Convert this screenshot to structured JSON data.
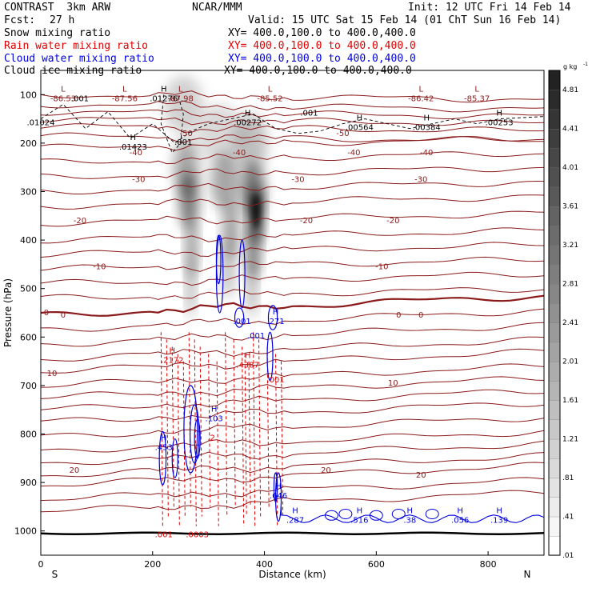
{
  "header": {
    "model": "CONTRAST  3km ARW",
    "org": "NCAR/MMM",
    "init": "Init: 12 UTC Fri 14 Feb 14",
    "fcst_label": "Fcst:",
    "fcst_value": "27 h",
    "valid": "Valid: 15 UTC Sat 15 Feb 14 (01 ChT Sun 16 Feb 14)"
  },
  "legend": [
    {
      "label": "Snow mixing ratio",
      "xy": "XY= 400.0,100.0 to 400.0,400.0",
      "color": "#000000"
    },
    {
      "label": "Rain water mixing ratio",
      "xy": "XY= 400.0,100.0 to 400.0,400.0",
      "color": "#e00000"
    },
    {
      "label": "Cloud water mixing ratio",
      "xy": "XY= 400.0,100.0 to 400.0,400.0",
      "color": "#0000e0"
    },
    {
      "label": "Cloud ice mixing ratio",
      "xy": "XY= 400.0,100.0 to 400.0,400.0",
      "color": "#000000"
    }
  ],
  "chart_data": {
    "type": "cross-section",
    "xlabel": "Distance (km)",
    "ylabel": "Pressure (hPa)",
    "xlim": [
      0,
      900
    ],
    "ylim": [
      1050,
      50
    ],
    "x_ticks": [
      "0",
      "200",
      "400",
      "600",
      "800"
    ],
    "x_tick_values": [
      0,
      200,
      400,
      600,
      800
    ],
    "y_ticks": [
      "100",
      "200",
      "300",
      "400",
      "500",
      "600",
      "700",
      "800",
      "900",
      "1000"
    ],
    "y_tick_values": [
      100,
      200,
      300,
      400,
      500,
      600,
      700,
      800,
      900,
      1000
    ],
    "endpoints": {
      "left": "S",
      "right": "N"
    },
    "colorbar": {
      "units": "g kg",
      "units_exp": "-1",
      "labels": [
        "4.81",
        "4.41",
        "4.01",
        "3.61",
        "3.21",
        "2.81",
        "2.41",
        "2.01",
        "1.61",
        "1.21",
        ".81",
        ".41",
        ".01"
      ],
      "values": [
        4.81,
        4.41,
        4.01,
        3.61,
        3.21,
        2.81,
        2.41,
        2.01,
        1.61,
        1.21,
        0.81,
        0.41,
        0.01
      ],
      "range": [
        0,
        5.0
      ]
    },
    "snow_maxima": [
      {
        "x": 265,
        "p": 300,
        "value": 3.5
      },
      {
        "x": 380,
        "p": 320,
        "value": 4.6
      }
    ],
    "temperature_labels": [
      {
        "x": 0,
        "p": 50,
        "text": ""
      },
      {
        "x": 260,
        "p": 185,
        "text": "-50"
      },
      {
        "x": 540,
        "p": 185,
        "text": "-50"
      },
      {
        "x": 170,
        "p": 225,
        "text": "-40"
      },
      {
        "x": 355,
        "p": 225,
        "text": "-40"
      },
      {
        "x": 560,
        "p": 225,
        "text": "-40"
      },
      {
        "x": 690,
        "p": 225,
        "text": "-40"
      },
      {
        "x": 175,
        "p": 280,
        "text": "-30"
      },
      {
        "x": 460,
        "p": 280,
        "text": "-30"
      },
      {
        "x": 680,
        "p": 280,
        "text": "-30"
      },
      {
        "x": 70,
        "p": 365,
        "text": "-20"
      },
      {
        "x": 475,
        "p": 365,
        "text": "-20"
      },
      {
        "x": 630,
        "p": 365,
        "text": "-20"
      },
      {
        "x": 105,
        "p": 460,
        "text": "-10"
      },
      {
        "x": 610,
        "p": 460,
        "text": "-10"
      },
      {
        "x": 10,
        "p": 555,
        "text": "0"
      },
      {
        "x": 40,
        "p": 560,
        "text": "0"
      },
      {
        "x": 640,
        "p": 560,
        "text": "0"
      },
      {
        "x": 680,
        "p": 560,
        "text": "0"
      },
      {
        "x": 20,
        "p": 680,
        "text": "10"
      },
      {
        "x": 630,
        "p": 700,
        "text": "10"
      },
      {
        "x": 60,
        "p": 880,
        "text": "20"
      },
      {
        "x": 510,
        "p": 880,
        "text": "20"
      },
      {
        "x": 680,
        "p": 890,
        "text": "20"
      }
    ],
    "extrema_labels": [
      {
        "x": 40,
        "p": 100,
        "mark": "L",
        "text": "-86.53",
        "color": "#8b1a1a"
      },
      {
        "x": 150,
        "p": 100,
        "mark": "L",
        "text": "-87.56",
        "color": "#8b1a1a"
      },
      {
        "x": 250,
        "p": 100,
        "mark": "L",
        "text": "-87.98",
        "color": "#8b1a1a"
      },
      {
        "x": 410,
        "p": 100,
        "mark": "L",
        "text": "-85.52",
        "color": "#8b1a1a"
      },
      {
        "x": 680,
        "p": 100,
        "mark": "L",
        "text": "-86.42",
        "color": "#8b1a1a"
      },
      {
        "x": 780,
        "p": 100,
        "mark": "L",
        "text": "-85.37",
        "color": "#8b1a1a"
      },
      {
        "x": 70,
        "p": 100,
        "mark": "",
        "text": ".001",
        "color": "#000000"
      },
      {
        "x": 220,
        "p": 100,
        "mark": "H",
        "text": ".01276",
        "color": "#000000"
      },
      {
        "x": 480,
        "p": 130,
        "mark": "",
        "text": ".001",
        "color": "#000000"
      },
      {
        "x": 0,
        "p": 150,
        "mark": "",
        "text": ".01024",
        "color": "#000000"
      },
      {
        "x": 370,
        "p": 150,
        "mark": "H",
        "text": ".00272",
        "color": "#000000"
      },
      {
        "x": 570,
        "p": 160,
        "mark": "H",
        "text": ".00564",
        "color": "#000000"
      },
      {
        "x": 690,
        "p": 160,
        "mark": "H",
        "text": ".00384",
        "color": "#000000"
      },
      {
        "x": 820,
        "p": 150,
        "mark": "H",
        "text": ".00253",
        "color": "#000000"
      },
      {
        "x": 165,
        "p": 200,
        "mark": "H",
        "text": ".01423",
        "color": "#000000"
      },
      {
        "x": 255,
        "p": 190,
        "mark": "",
        "text": ".001",
        "color": "#000000"
      },
      {
        "x": 235,
        "p": 640,
        "mark": "H",
        "text": ".2172",
        "color": "#e00000"
      },
      {
        "x": 370,
        "p": 650,
        "mark": "H",
        "text": ".4387",
        "color": "#e00000"
      },
      {
        "x": 420,
        "p": 680,
        "mark": "",
        "text": ".001",
        "color": "#e00000"
      },
      {
        "x": 220,
        "p": 1000,
        "mark": "",
        "text": ".001",
        "color": "#e00000"
      },
      {
        "x": 280,
        "p": 1000,
        "mark": "",
        "text": ".0003",
        "color": "#e00000"
      },
      {
        "x": 305,
        "p": 800,
        "mark": "",
        "text": ".2",
        "color": "#e00000"
      },
      {
        "x": 360,
        "p": 560,
        "mark": "",
        "text": ".001",
        "color": "#0000e0"
      },
      {
        "x": 420,
        "p": 560,
        "mark": "H",
        "text": ".271",
        "color": "#0000e0"
      },
      {
        "x": 385,
        "p": 590,
        "mark": "",
        "text": ".001",
        "color": "#0000e0"
      },
      {
        "x": 310,
        "p": 760,
        "mark": "H",
        "text": ".103",
        "color": "#0000e0"
      },
      {
        "x": 220,
        "p": 820,
        "mark": "H",
        "text": ".453",
        "color": "#0000e0"
      },
      {
        "x": 425,
        "p": 920,
        "mark": "H",
        "text": ".646",
        "color": "#0000e0"
      },
      {
        "x": 455,
        "p": 970,
        "mark": "H",
        "text": ".287",
        "color": "#0000e0"
      },
      {
        "x": 570,
        "p": 970,
        "mark": "H",
        "text": ".516",
        "color": "#0000e0"
      },
      {
        "x": 660,
        "p": 970,
        "mark": "H",
        "text": ".38",
        "color": "#0000e0"
      },
      {
        "x": 750,
        "p": 970,
        "mark": "H",
        "text": ".056",
        "color": "#0000e0"
      },
      {
        "x": 820,
        "p": 970,
        "mark": "H",
        "text": ".139",
        "color": "#0000e0"
      }
    ]
  }
}
